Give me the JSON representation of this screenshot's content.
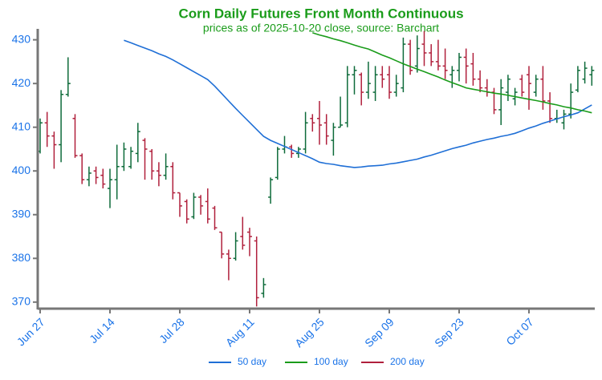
{
  "chart_data": {
    "type": "ohlc",
    "title": "Corn Daily Futures Front Month Continuous",
    "subtitle": "prices as of 2025-10-20 close, source: Barchart",
    "categories": [
      "Jun 27",
      null,
      null,
      null,
      null,
      null,
      null,
      null,
      null,
      null,
      "Jul 14",
      null,
      null,
      null,
      null,
      null,
      null,
      null,
      null,
      null,
      "Jul 28",
      null,
      null,
      null,
      null,
      null,
      null,
      null,
      null,
      null,
      "Aug 11",
      null,
      null,
      null,
      null,
      null,
      null,
      null,
      null,
      null,
      "Aug 25",
      null,
      null,
      null,
      null,
      null,
      null,
      null,
      null,
      null,
      "Sep 09",
      null,
      null,
      null,
      null,
      null,
      null,
      null,
      null,
      null,
      "Sep 23",
      null,
      null,
      null,
      null,
      null,
      null,
      null,
      null,
      null,
      "Oct 07",
      null,
      null,
      null,
      null,
      null,
      null,
      null,
      null,
      null
    ],
    "open": [
      404.5,
      411,
      408,
      406,
      417.5,
      412,
      403.5,
      398,
      400,
      399,
      396,
      398,
      401,
      401,
      404,
      407,
      404.5,
      400,
      399,
      401,
      395,
      393,
      389.5,
      394,
      393,
      391.5,
      386,
      381,
      380,
      385,
      386,
      384,
      372,
      394,
      398.5,
      405,
      405.5,
      404,
      405,
      412,
      412,
      411,
      407,
      410,
      411,
      422,
      422,
      418,
      418,
      422,
      422,
      418,
      419,
      429,
      424,
      429,
      427,
      425,
      424,
      422,
      423,
      426,
      424.5,
      421,
      419,
      418,
      414,
      418,
      416.5,
      421,
      422,
      418,
      421,
      416,
      412,
      411,
      413,
      418.5,
      421,
      422
    ],
    "high": [
      412,
      413.5,
      409,
      418.5,
      426,
      413,
      404,
      401,
      401,
      400.5,
      400.5,
      406,
      406.5,
      405.5,
      411,
      407.5,
      405,
      402,
      404,
      402,
      395,
      393.5,
      395,
      394.5,
      396,
      392,
      386,
      382,
      386,
      389.5,
      387,
      385,
      375.5,
      398.5,
      405.5,
      408,
      406,
      405.5,
      413.5,
      413,
      416,
      413,
      411,
      417,
      424,
      424,
      422.5,
      425,
      424,
      424,
      424,
      422,
      430.5,
      430,
      431,
      432,
      429,
      430,
      428,
      424,
      427,
      428,
      427,
      423,
      421,
      419,
      421,
      422,
      419,
      422,
      424,
      422,
      424,
      418,
      414,
      414,
      420,
      424,
      425,
      424
    ],
    "low": [
      404,
      405.5,
      400.5,
      402,
      417,
      403,
      397,
      396.5,
      397,
      396,
      391.5,
      393.5,
      400,
      400.5,
      402,
      398,
      398,
      396.5,
      398,
      393.5,
      389.5,
      388,
      389,
      390,
      388,
      386.5,
      380,
      375,
      379.5,
      382,
      380.5,
      369,
      371,
      392.5,
      398,
      404,
      403,
      403,
      404,
      409,
      406,
      406,
      403.5,
      410,
      410,
      417.5,
      415,
      416.5,
      416,
      419,
      416.5,
      417,
      418,
      422,
      422.5,
      424,
      424,
      423,
      421,
      419,
      420.5,
      420,
      419.5,
      418,
      417,
      413,
      410.5,
      416,
      415,
      417,
      414,
      417,
      414,
      411,
      411,
      409.5,
      412,
      418,
      420,
      419.5
    ],
    "close": [
      411,
      408,
      406,
      417.5,
      420,
      403.5,
      398,
      399.5,
      398.5,
      397,
      398,
      401,
      405,
      404.5,
      409,
      405,
      400,
      399,
      401,
      395,
      392,
      389,
      394,
      392,
      389,
      387,
      381,
      380,
      384,
      383,
      385,
      371,
      374,
      398,
      405,
      405.5,
      404,
      405,
      411,
      411,
      410.5,
      408,
      410,
      410.5,
      422,
      423,
      418,
      420,
      422,
      421,
      418,
      420,
      429,
      423,
      428,
      427,
      425,
      424,
      423,
      423,
      426,
      424,
      421,
      419,
      418,
      414,
      419,
      421,
      418,
      418,
      420,
      421,
      416,
      412,
      412,
      413,
      418,
      423,
      423.5,
      423
    ],
    "up_color": "#0e6b3a",
    "down_color": "#b0203c",
    "series": [
      {
        "name": "50 day",
        "color": "#1f6fd6",
        "values": [
          null,
          null,
          null,
          null,
          null,
          null,
          null,
          null,
          null,
          null,
          null,
          null,
          429.9,
          429.3,
          428.7,
          428.1,
          427.5,
          426.8,
          426.2,
          425.4,
          424.5,
          423.6,
          422.7,
          421.8,
          420.9,
          419.4,
          417.7,
          416,
          414.3,
          412.7,
          411.1,
          409.5,
          407.9,
          407,
          406.3,
          405.6,
          404.9,
          404.2,
          403.5,
          402.8,
          402,
          401.7,
          401.5,
          401.2,
          401,
          400.8,
          400.9,
          401.1,
          401.2,
          401.3,
          401.6,
          401.8,
          402.1,
          402.4,
          402.7,
          403.2,
          403.6,
          404.1,
          404.6,
          405.1,
          405.5,
          405.9,
          406.4,
          406.8,
          407.2,
          407.5,
          407.9,
          408.2,
          408.6,
          409.2,
          409.8,
          410.3,
          410.9,
          411.4,
          411.9,
          412.4,
          412.8,
          413.3,
          414.2,
          415.1
        ]
      },
      {
        "name": "100 day",
        "color": "#1a9c1a",
        "values": [
          null,
          null,
          null,
          null,
          null,
          null,
          null,
          null,
          null,
          null,
          null,
          null,
          null,
          null,
          null,
          null,
          null,
          null,
          null,
          null,
          null,
          null,
          null,
          null,
          null,
          null,
          null,
          null,
          null,
          null,
          null,
          null,
          null,
          null,
          null,
          null,
          null,
          null,
          null,
          431.6,
          431.1,
          430.7,
          430.2,
          429.8,
          429.3,
          428.8,
          428.3,
          427.9,
          427.2,
          426.5,
          425.9,
          425.2,
          424.5,
          423.9,
          423.3,
          422.7,
          422.1,
          421.5,
          420.8,
          420.2,
          419.6,
          419,
          418.7,
          418.4,
          418.1,
          417.8,
          417.6,
          417.3,
          417,
          416.7,
          416.4,
          416.1,
          415.8,
          415.4,
          415.1,
          414.7,
          414.4,
          414,
          413.7,
          413.3
        ]
      },
      {
        "name": "200 day",
        "color": "#b0203c",
        "values": [
          null,
          null,
          null,
          null,
          null,
          null,
          null,
          null,
          null,
          null,
          null,
          null,
          null,
          null,
          null,
          null,
          null,
          null,
          null,
          null,
          null,
          null,
          null,
          null,
          null,
          null,
          null,
          null,
          null,
          null,
          null,
          null,
          null,
          null,
          null,
          null,
          null,
          null,
          null,
          null,
          null,
          null,
          null,
          null,
          null,
          null,
          null,
          null,
          null,
          null,
          null,
          null,
          null,
          null,
          null,
          null,
          null,
          null,
          null,
          null,
          null,
          null,
          null,
          null,
          null,
          null,
          null,
          null,
          null,
          null,
          null,
          null,
          null,
          null,
          null,
          null,
          null,
          null,
          null,
          null
        ]
      }
    ],
    "ylim": [
      368.5,
      432.5
    ],
    "yticks": [
      370,
      380,
      390,
      400,
      410,
      420,
      430
    ]
  }
}
